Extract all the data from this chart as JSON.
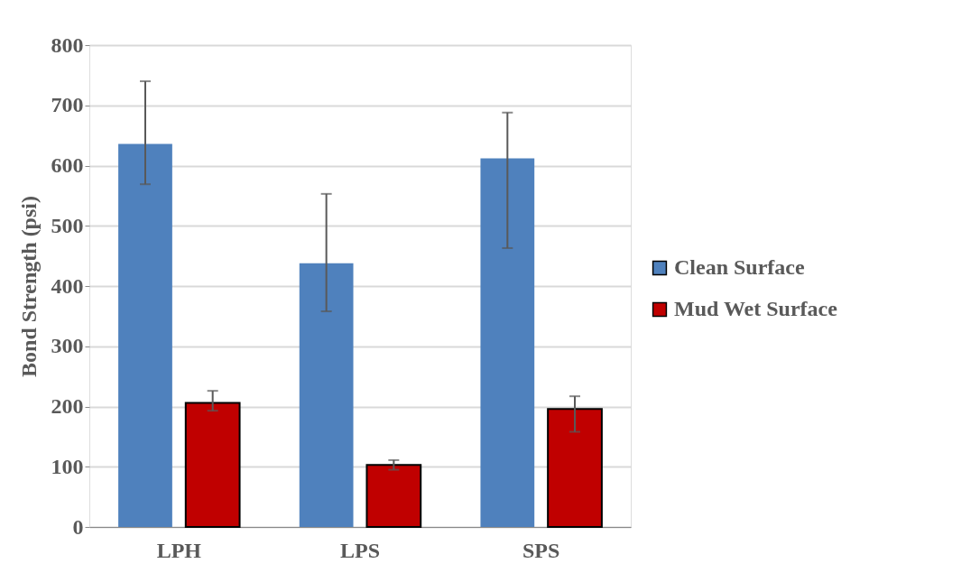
{
  "chart_data": {
    "type": "bar",
    "ylabel": "Bond Strength (psi)",
    "categories": [
      "LPH",
      "LPS",
      "SPS"
    ],
    "series": [
      {
        "name": "Clean Surface",
        "color": "#4f81bd",
        "values": [
          636,
          438,
          612
        ],
        "errors": [
          [
            569,
            740
          ],
          [
            358,
            553
          ],
          [
            463,
            688
          ]
        ]
      },
      {
        "name": "Mud Wet Surface",
        "color": "#c00000",
        "values": [
          206,
          103,
          196
        ],
        "errors": [
          [
            193,
            226
          ],
          [
            95,
            111
          ],
          [
            158,
            217
          ]
        ]
      }
    ],
    "ylim": [
      0,
      800
    ],
    "yticks": [
      0,
      100,
      200,
      300,
      400,
      500,
      600,
      700,
      800
    ],
    "grid": "y",
    "legend": "right"
  }
}
